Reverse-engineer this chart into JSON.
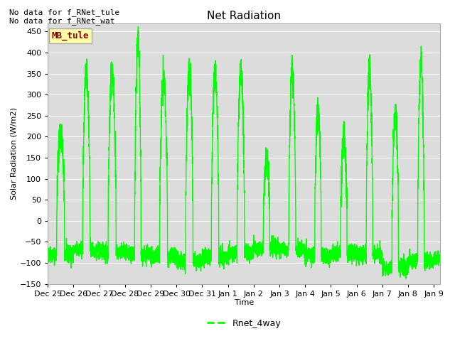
{
  "title": "Net Radiation",
  "xlabel": "Time",
  "ylabel": "Solar Radiation (W/m2)",
  "ylim": [
    -150,
    470
  ],
  "yticks": [
    -150,
    -100,
    -50,
    0,
    50,
    100,
    150,
    200,
    250,
    300,
    350,
    400,
    450
  ],
  "line_color": "#00FF00",
  "line_width": 1.0,
  "bg_color": "#DCDCDC",
  "fig_bg": "#FFFFFF",
  "annotation_text1": "No data for f_RNet_tule",
  "annotation_text2": "No data for f_RNet_wat",
  "legend_label": "Rnet_4way",
  "box_label": "MB_tule",
  "xtick_labels": [
    "Dec 25",
    "Dec 26",
    "Dec 27",
    "Dec 28",
    "Dec 29",
    "Dec 30",
    "Dec 31",
    "Jan 1",
    "Jan 2",
    "Jan 3",
    "Jan 4",
    "Jan 5",
    "Jan 6",
    "Jan 7",
    "Jan 8",
    "Jan 9"
  ],
  "grid_color": "#FFFFFF",
  "title_fontsize": 11,
  "axis_fontsize": 8,
  "tick_fontsize": 8,
  "annot_fontsize": 8
}
